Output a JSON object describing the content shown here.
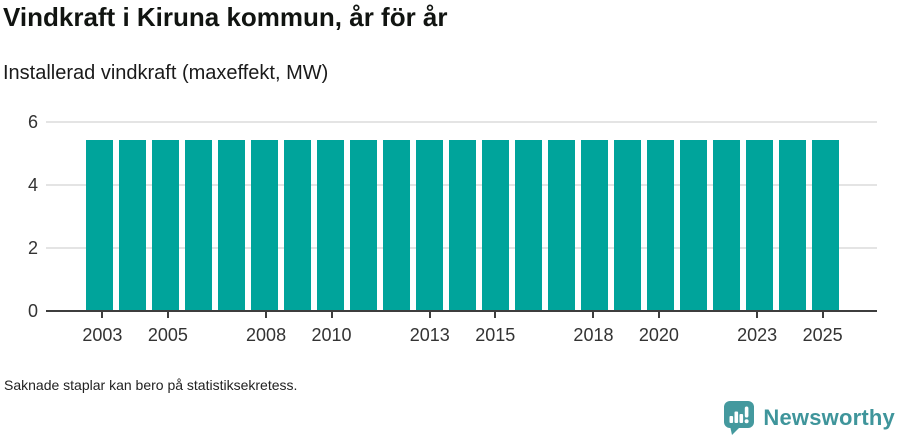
{
  "header": {
    "title": "Vindkraft i Kiruna kommun, år för år",
    "subtitle": "Installerad vindkraft (maxeffekt, MW)"
  },
  "footnote": "Saknade staplar kan bero på statistiksekretess.",
  "branding": {
    "logo_text": "Newsworthy",
    "logo_icon": "newsworthy-speech-bubble-bar-chart-icon"
  },
  "colors": {
    "bar": "#00a49b",
    "gridline": "#e4e4e4",
    "axis": "#3d3d3d",
    "tick_text": "#333333",
    "logo_teal": "#44999e"
  },
  "chart_data": {
    "type": "bar",
    "title": "Vindkraft i Kiruna kommun, år för år",
    "subtitle": "Installerad vindkraft (maxeffekt, MW)",
    "xlabel": "",
    "ylabel": "Installerad vindkraft (maxeffekt, MW)",
    "categories": [
      2003,
      2004,
      2005,
      2006,
      2007,
      2008,
      2009,
      2010,
      2011,
      2012,
      2013,
      2014,
      2015,
      2016,
      2017,
      2018,
      2019,
      2020,
      2021,
      2022,
      2023,
      2024,
      2025
    ],
    "values": [
      5.4,
      5.4,
      5.4,
      5.4,
      5.4,
      5.4,
      5.4,
      5.4,
      5.4,
      5.4,
      5.4,
      5.4,
      5.4,
      5.4,
      5.4,
      5.4,
      5.4,
      5.4,
      5.4,
      5.4,
      5.4,
      5.4,
      5.4
    ],
    "ylim": [
      0,
      6
    ],
    "yticks": [
      0,
      2,
      4,
      6
    ],
    "ytick_labels": [
      "0",
      "2",
      "4",
      "6"
    ],
    "xticks": [
      2003,
      2005,
      2008,
      2010,
      2013,
      2015,
      2018,
      2020,
      2023,
      2025
    ],
    "grid": true,
    "legend": false
  }
}
